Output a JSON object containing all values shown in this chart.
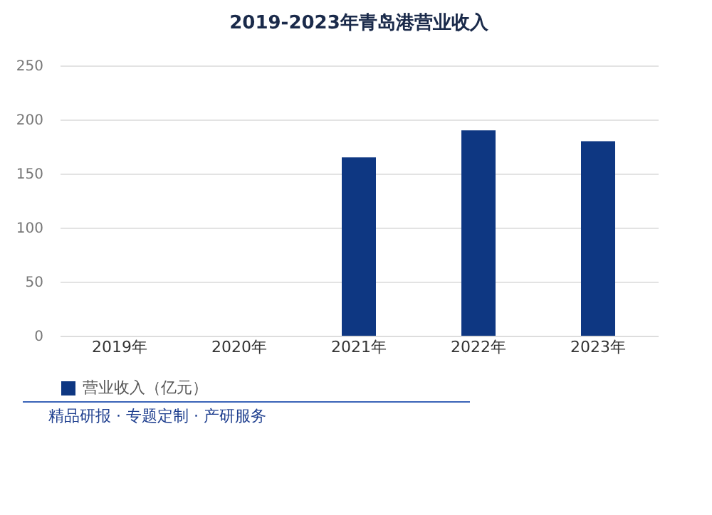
{
  "chart_data": {
    "type": "bar",
    "title": "2019-2023年青岛港营业收入",
    "categories": [
      "2019年",
      "2020年",
      "2021年",
      "2022年",
      "2023年"
    ],
    "series": [
      {
        "name": "营业收入（亿元）",
        "color": "#0e3782",
        "values": [
          null,
          null,
          165,
          190,
          180
        ]
      }
    ],
    "ylim": [
      0,
      250
    ],
    "yticks": [
      0,
      50,
      100,
      150,
      200,
      250
    ],
    "grid": "y",
    "legend": "bottom",
    "annotations": [
      "精品研报 · 专题定制 · 产研服务"
    ]
  }
}
